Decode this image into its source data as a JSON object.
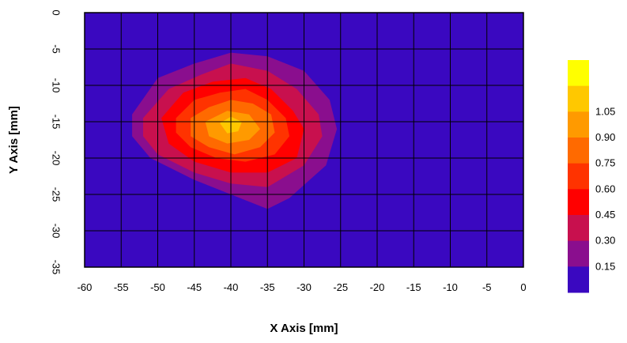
{
  "chart_data": {
    "type": "heatmap",
    "title": "",
    "xlabel": "X Axis [mm]",
    "ylabel": "Y Axis [mm]",
    "xlim": [
      -60,
      0
    ],
    "ylim": [
      -35,
      0
    ],
    "xticks": [
      -60,
      -55,
      -50,
      -45,
      -40,
      -35,
      -30,
      -25,
      -20,
      -15,
      -10,
      -5,
      0
    ],
    "yticks": [
      0,
      -5,
      -10,
      -15,
      -20,
      -25,
      -30,
      -35
    ],
    "ytick_labels": [
      "0",
      "-5",
      "-10",
      "-15",
      "-20",
      "-25",
      "-30",
      "-35"
    ],
    "grid": true,
    "legend_placement": "right",
    "colorbar": {
      "levels": [
        {
          "label": "",
          "color": "#3a08c0"
        },
        {
          "label": "0.15",
          "color": "#8a0e8e"
        },
        {
          "label": "0.30",
          "color": "#c8104e"
        },
        {
          "label": "0.45",
          "color": "#ff0000"
        },
        {
          "label": "0.60",
          "color": "#ff3300"
        },
        {
          "label": "0.75",
          "color": "#ff6a00"
        },
        {
          "label": "0.90",
          "color": "#ff9a00"
        },
        {
          "label": "1.05",
          "color": "#ffc800"
        },
        {
          "label": "",
          "color": "#ffff00"
        }
      ]
    },
    "background_color": "#3a08c0",
    "peak": {
      "x": -40,
      "y": -15,
      "value": 1.05
    },
    "contours": [
      {
        "level": 0.15,
        "color": "#8a0e8e",
        "points": [
          [
            -53.5,
            -14
          ],
          [
            -50,
            -9
          ],
          [
            -45,
            -7
          ],
          [
            -40,
            -5.5
          ],
          [
            -35,
            -6
          ],
          [
            -30,
            -8
          ],
          [
            -26.5,
            -12
          ],
          [
            -25.5,
            -16
          ],
          [
            -27,
            -21
          ],
          [
            -32,
            -25.5
          ],
          [
            -35,
            -27
          ],
          [
            -40,
            -25
          ],
          [
            -45,
            -23
          ],
          [
            -51,
            -20
          ],
          [
            -53.5,
            -17
          ]
        ]
      },
      {
        "level": 0.3,
        "color": "#c8104e",
        "points": [
          [
            -52,
            -14.5
          ],
          [
            -48.5,
            -10.5
          ],
          [
            -44,
            -8.5
          ],
          [
            -40,
            -7
          ],
          [
            -35,
            -8
          ],
          [
            -31,
            -10.5
          ],
          [
            -28,
            -14
          ],
          [
            -27.5,
            -17
          ],
          [
            -30,
            -21
          ],
          [
            -35,
            -24
          ],
          [
            -40,
            -23.5
          ],
          [
            -45,
            -22
          ],
          [
            -50,
            -19.5
          ],
          [
            -52,
            -17
          ]
        ]
      },
      {
        "level": 0.45,
        "color": "#ff0000",
        "points": [
          [
            -49.5,
            -14.5
          ],
          [
            -46.5,
            -11
          ],
          [
            -42.5,
            -9.5
          ],
          [
            -38,
            -9
          ],
          [
            -34.5,
            -10.5
          ],
          [
            -31.5,
            -13.5
          ],
          [
            -30,
            -16
          ],
          [
            -31,
            -20
          ],
          [
            -35,
            -22
          ],
          [
            -40,
            -22
          ],
          [
            -45,
            -20.5
          ],
          [
            -48.5,
            -18
          ]
        ]
      },
      {
        "level": 0.6,
        "color": "#ff3300",
        "points": [
          [
            -47.5,
            -14.5
          ],
          [
            -45,
            -12
          ],
          [
            -41.5,
            -11
          ],
          [
            -38,
            -10.5
          ],
          [
            -35,
            -12
          ],
          [
            -32.5,
            -14.5
          ],
          [
            -32,
            -17
          ],
          [
            -34,
            -19.5
          ],
          [
            -38,
            -20.5
          ],
          [
            -42,
            -20
          ],
          [
            -45.5,
            -18.5
          ],
          [
            -47.5,
            -16.5
          ]
        ]
      },
      {
        "level": 0.75,
        "color": "#ff6a00",
        "points": [
          [
            -45.5,
            -14.5
          ],
          [
            -43,
            -13
          ],
          [
            -40,
            -12
          ],
          [
            -37,
            -12.5
          ],
          [
            -34.5,
            -14
          ],
          [
            -34,
            -16.5
          ],
          [
            -36,
            -18.5
          ],
          [
            -39.5,
            -19.5
          ],
          [
            -43,
            -18.5
          ],
          [
            -45.5,
            -17
          ]
        ]
      },
      {
        "level": 0.9,
        "color": "#ff9a00",
        "points": [
          [
            -43.5,
            -15
          ],
          [
            -40.5,
            -13.5
          ],
          [
            -37.5,
            -14
          ],
          [
            -36,
            -16
          ],
          [
            -37.5,
            -17.5
          ],
          [
            -40.5,
            -18
          ],
          [
            -43,
            -17
          ]
        ]
      },
      {
        "level": 1.05,
        "color": "#ffc800",
        "points": [
          [
            -41.5,
            -15.2
          ],
          [
            -40,
            -14.3
          ],
          [
            -38.5,
            -15
          ],
          [
            -39,
            -16.3
          ],
          [
            -40.5,
            -16.6
          ]
        ]
      }
    ]
  }
}
